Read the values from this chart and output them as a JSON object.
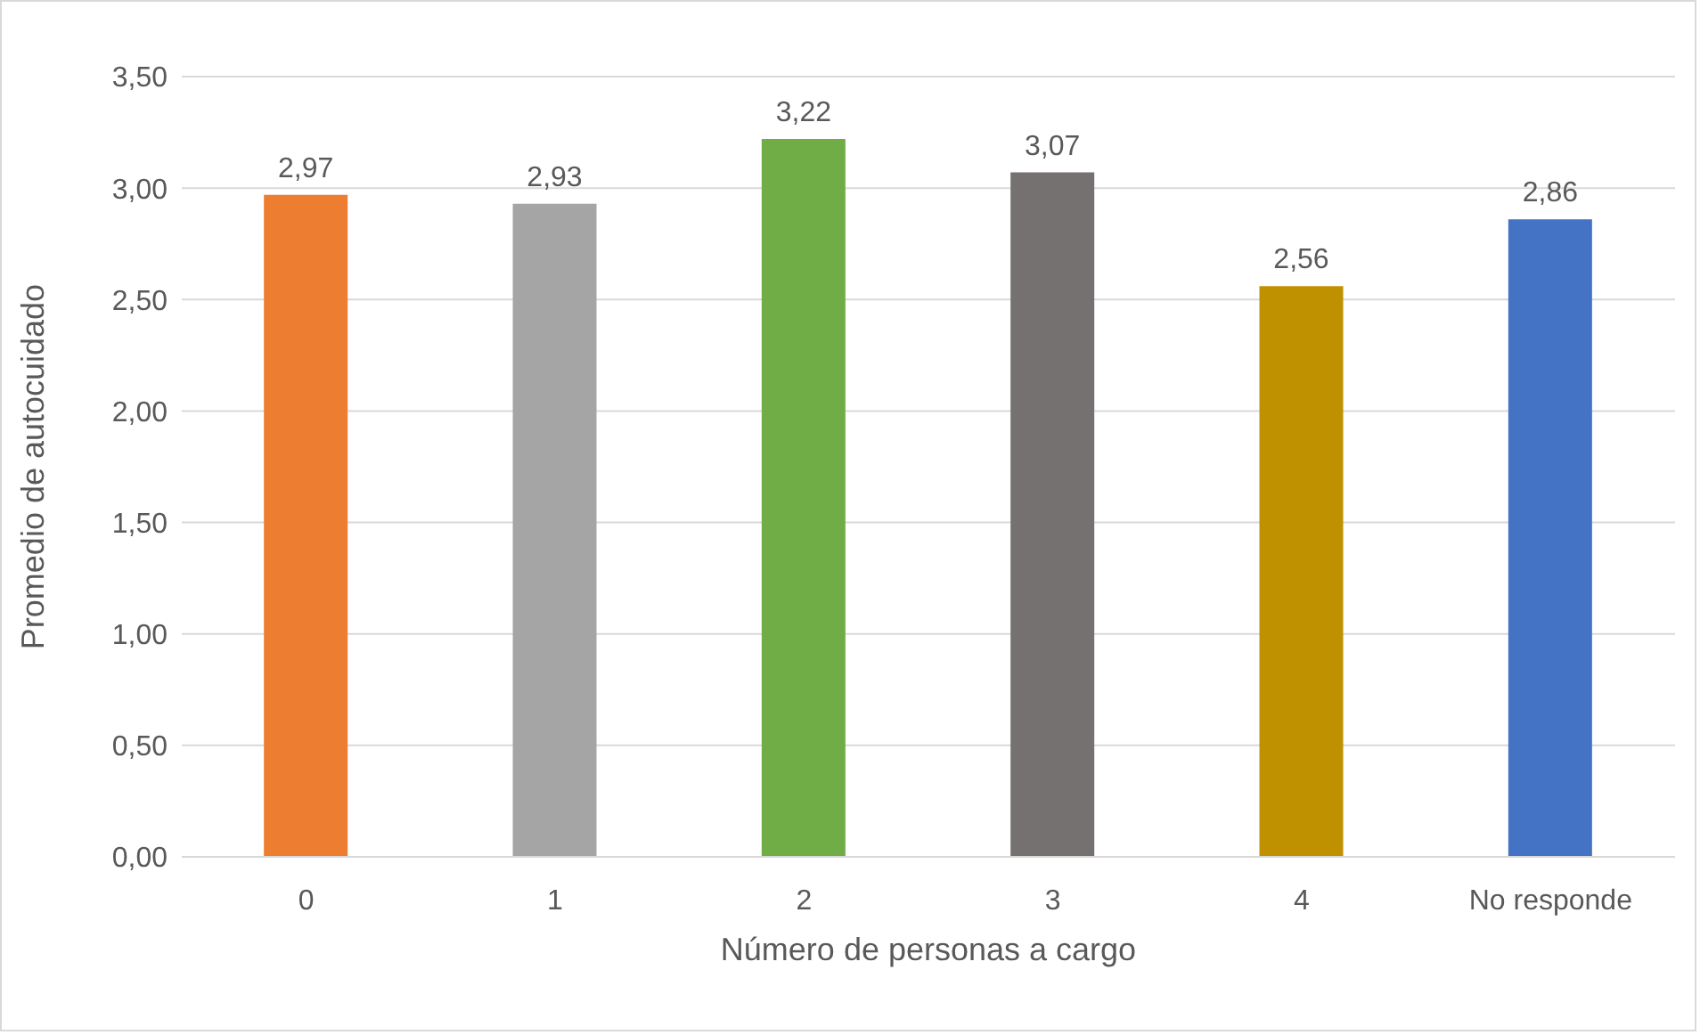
{
  "chart_data": {
    "type": "bar",
    "xlabel": "Número de personas a cargo",
    "ylabel": "Promedio de autocuidado",
    "categories": [
      "0",
      "1",
      "2",
      "3",
      "4",
      "No responde"
    ],
    "values": [
      2.97,
      2.93,
      3.22,
      3.07,
      2.56,
      2.86
    ],
    "value_labels": [
      "2,97",
      "2,93",
      "3,22",
      "3,07",
      "2,56",
      "2,86"
    ],
    "colors": [
      "#ed7d31",
      "#a5a5a5",
      "#70ad47",
      "#767171",
      "#bf9000",
      "#4472c4"
    ],
    "ylim": [
      0,
      3.5
    ],
    "yticks": [
      {
        "value": 0,
        "label": "0,00"
      },
      {
        "value": 0.5,
        "label": "0,50"
      },
      {
        "value": 1,
        "label": "1,00"
      },
      {
        "value": 1.5,
        "label": "1,50"
      },
      {
        "value": 2,
        "label": "2,00"
      },
      {
        "value": 2.5,
        "label": "2,50"
      },
      {
        "value": 3,
        "label": "3,00"
      },
      {
        "value": 3.5,
        "label": "3,50"
      }
    ],
    "grid": "y"
  }
}
